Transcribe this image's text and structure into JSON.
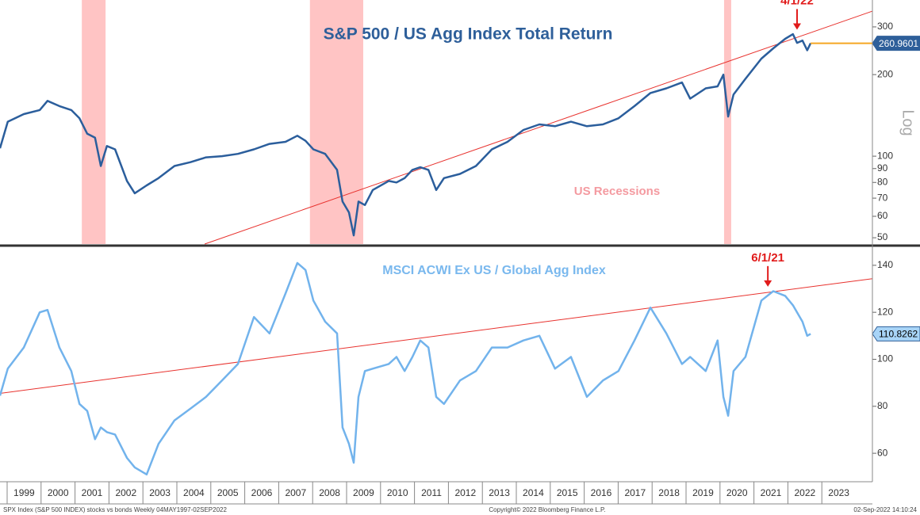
{
  "chart_data": [
    {
      "type": "line",
      "title": "S&P 500 / US Agg Index Total Return",
      "color": "#2b5e9c",
      "log": true,
      "ylabel": "Log",
      "xlim": [
        1998.79,
        2024.49
      ],
      "ylim": [
        47.4,
        377
      ],
      "yticks": [
        50,
        60,
        70,
        80,
        90,
        100,
        200,
        300
      ],
      "x": [
        1998.79,
        1999.02,
        1999.49,
        1999.96,
        2000.19,
        2000.54,
        2000.89,
        2001.13,
        2001.36,
        2001.59,
        2001.76,
        2001.94,
        2002.18,
        2002.53,
        2002.76,
        2003.11,
        2003.46,
        2003.93,
        2004.4,
        2004.86,
        2005.33,
        2005.8,
        2006.27,
        2006.73,
        2007.2,
        2007.55,
        2007.79,
        2008.02,
        2008.37,
        2008.72,
        2008.88,
        2009.07,
        2009.21,
        2009.35,
        2009.54,
        2009.77,
        2010.24,
        2010.47,
        2010.71,
        2010.94,
        2011.17,
        2011.41,
        2011.64,
        2011.87,
        2012.34,
        2012.81,
        2013.28,
        2013.74,
        2014.21,
        2014.68,
        2015.14,
        2015.61,
        2016.08,
        2016.55,
        2017.01,
        2017.48,
        2017.95,
        2018.42,
        2018.88,
        2019.12,
        2019.58,
        2019.93,
        2020.1,
        2020.24,
        2020.4,
        2020.75,
        2021.22,
        2021.57,
        2021.92,
        2022.15,
        2022.27,
        2022.43,
        2022.57,
        2022.67
      ],
      "values": [
        107,
        134,
        143,
        148,
        160,
        153,
        148,
        138,
        121,
        117,
        92,
        109,
        106,
        81,
        73,
        78,
        83,
        92,
        95,
        99,
        100,
        102,
        106,
        111,
        113,
        119,
        114,
        106,
        102,
        89,
        68,
        62,
        51,
        68,
        66,
        75,
        81,
        80,
        83,
        89,
        91,
        89,
        75,
        83,
        86,
        92,
        106,
        113,
        125,
        131,
        129,
        134,
        129,
        131,
        138,
        153,
        171,
        178,
        187,
        163,
        178,
        181,
        200,
        140,
        169,
        193,
        229,
        250,
        271,
        282,
        262,
        267,
        246,
        260.9601
      ],
      "last_line_color": "#f5a623",
      "bands": [
        [
          2001.2,
          2001.9
        ],
        [
          2007.92,
          2009.49
        ],
        [
          2020.12,
          2020.33
        ]
      ],
      "band_color": "#ffc4c4",
      "band_label": "US Recessions",
      "trendline": {
        "x": [
          2004.82,
          2024.49
        ],
        "values": [
          47.4,
          343
        ],
        "color": "#e8322e"
      },
      "annotation": {
        "text": "4/1/22",
        "x": 2022.27,
        "y": 293
      }
    },
    {
      "type": "line",
      "title": "MSCI ACWI Ex US / Global Agg Index",
      "color": "#72b3ec",
      "log": false,
      "xlim": [
        1998.79,
        2024.49
      ],
      "ylim": [
        47.9,
        147.7
      ],
      "yticks": [
        60,
        80,
        100,
        120,
        140
      ],
      "xticks": [
        1999,
        2000,
        2001,
        2002,
        2003,
        2004,
        2005,
        2006,
        2007,
        2008,
        2009,
        2010,
        2011,
        2012,
        2013,
        2014,
        2015,
        2016,
        2017,
        2018,
        2019,
        2020,
        2021,
        2022,
        2023
      ],
      "x": [
        1998.79,
        1999.02,
        1999.49,
        1999.96,
        2000.19,
        2000.54,
        2000.89,
        2001.13,
        2001.36,
        2001.59,
        2001.76,
        2001.94,
        2002.18,
        2002.53,
        2002.76,
        2003.11,
        2003.46,
        2003.93,
        2004.4,
        2004.86,
        2005.33,
        2005.8,
        2006.27,
        2006.73,
        2007.2,
        2007.55,
        2007.79,
        2008.02,
        2008.37,
        2008.72,
        2008.88,
        2009.07,
        2009.21,
        2009.35,
        2009.54,
        2009.77,
        2010.24,
        2010.47,
        2010.71,
        2010.94,
        2011.17,
        2011.41,
        2011.64,
        2011.87,
        2012.34,
        2012.81,
        2013.28,
        2013.74,
        2014.21,
        2014.68,
        2015.14,
        2015.61,
        2016.08,
        2016.55,
        2017.01,
        2017.48,
        2017.95,
        2018.42,
        2018.88,
        2019.12,
        2019.58,
        2019.93,
        2020.1,
        2020.24,
        2020.4,
        2020.75,
        2021.22,
        2021.57,
        2021.92,
        2022.15,
        2022.27,
        2022.43,
        2022.57,
        2022.67
      ],
      "values": [
        84.5,
        96,
        105,
        120,
        121,
        105,
        95,
        81,
        78,
        66,
        71,
        69,
        68,
        58,
        54,
        51,
        64,
        74,
        79,
        84,
        91,
        98,
        118,
        111,
        128,
        141,
        138,
        125,
        116,
        111,
        71,
        64,
        56,
        84,
        95,
        96,
        98,
        101,
        95,
        101,
        108,
        105,
        84,
        81,
        91,
        95,
        105,
        105,
        108,
        110,
        96,
        101,
        84,
        91,
        95,
        108,
        122,
        111,
        98,
        101,
        95,
        108,
        84,
        76,
        95,
        101,
        125,
        129,
        127,
        123,
        120,
        116,
        110,
        110.8262
      ],
      "trendline": {
        "x": [
          1998.79,
          2024.49
        ],
        "values": [
          85.5,
          134.3
        ],
        "color": "#e8322e"
      },
      "annotation": {
        "text": "6/1/21",
        "x": 2021.41,
        "y": 130.9
      }
    }
  ],
  "footer": {
    "left": "SPX Index (S&P 500 INDEX) stocks vs bonds  Weekly 04MAY1997-02SEP2022",
    "center": "Copyright© 2022 Bloomberg Finance L.P.",
    "right": "02-Sep-2022 14:10:24"
  }
}
